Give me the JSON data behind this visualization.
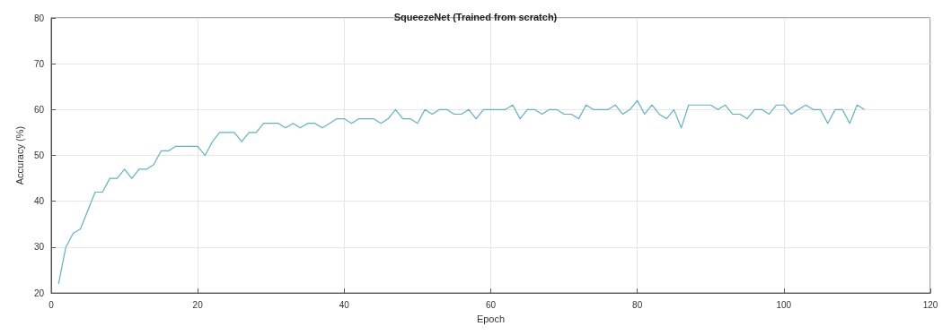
{
  "chart_data": {
    "type": "line",
    "title": "SqueezeNet (Trained from scratch)",
    "xlabel": "Epoch",
    "ylabel": "Accuracy (%)",
    "x": [
      1,
      2,
      3,
      4,
      5,
      6,
      7,
      8,
      9,
      10,
      11,
      12,
      13,
      14,
      15,
      16,
      17,
      18,
      19,
      20,
      21,
      22,
      23,
      24,
      25,
      26,
      27,
      28,
      29,
      30,
      31,
      32,
      33,
      34,
      35,
      36,
      37,
      38,
      39,
      40,
      41,
      42,
      43,
      44,
      45,
      46,
      47,
      48,
      49,
      50,
      51,
      52,
      53,
      54,
      55,
      56,
      57,
      58,
      59,
      60,
      61,
      62,
      63,
      64,
      65,
      66,
      67,
      68,
      69,
      70,
      71,
      72,
      73,
      74,
      75,
      76,
      77,
      78,
      79,
      80,
      81,
      82,
      83,
      84,
      85,
      86,
      87,
      88,
      89,
      90,
      91,
      92,
      93,
      94,
      95,
      96,
      97,
      98,
      99,
      100,
      101,
      102,
      103,
      104,
      105,
      106,
      107,
      108,
      109,
      110,
      111
    ],
    "series": [
      {
        "color": "#5fb3c4",
        "values": [
          22,
          30,
          33,
          34,
          38,
          42,
          42,
          45,
          45,
          47,
          45,
          47,
          47,
          48,
          51,
          51,
          52,
          52,
          52,
          52,
          50,
          53,
          55,
          55,
          55,
          53,
          55,
          55,
          57,
          57,
          57,
          56,
          57,
          56,
          57,
          57,
          56,
          57,
          58,
          58,
          57,
          58,
          58,
          58,
          57,
          58,
          60,
          58,
          58,
          57,
          60,
          59,
          60,
          60,
          59,
          59,
          60,
          58,
          60,
          60,
          60,
          60,
          61,
          58,
          60,
          60,
          59,
          60,
          60,
          59,
          59,
          58,
          61,
          60,
          60,
          60,
          61,
          59,
          60,
          62,
          59,
          61,
          59,
          58,
          60,
          56,
          61,
          61,
          61,
          61,
          60,
          61,
          59,
          59,
          58,
          60,
          60,
          59,
          61,
          61,
          59,
          60,
          61,
          60,
          60,
          57,
          60,
          60,
          57,
          61,
          60
        ]
      }
    ],
    "xlim": [
      0,
      120
    ],
    "xticks": [
      0,
      20,
      40,
      60,
      80,
      100,
      120
    ],
    "ylim": [
      20,
      80
    ],
    "yticks": [
      20,
      30,
      40,
      50,
      60,
      70,
      80
    ],
    "grid": true,
    "marker": "none",
    "line_style": "solid"
  }
}
